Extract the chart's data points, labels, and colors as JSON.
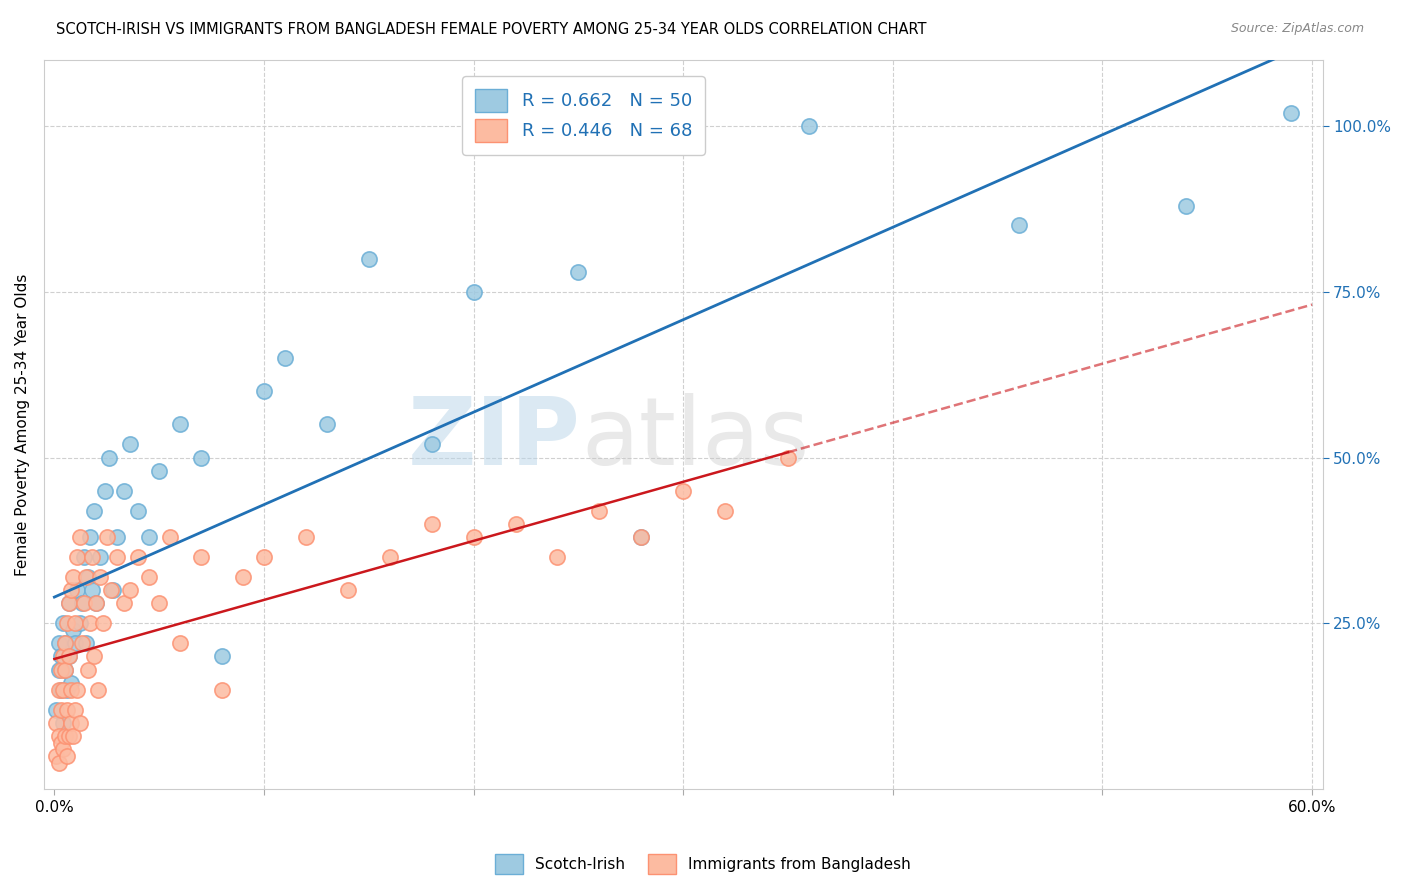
{
  "title": "SCOTCH-IRISH VS IMMIGRANTS FROM BANGLADESH FEMALE POVERTY AMONG 25-34 YEAR OLDS CORRELATION CHART",
  "source": "Source: ZipAtlas.com",
  "xlabel": "",
  "ylabel": "Female Poverty Among 25-34 Year Olds",
  "xlim": [
    0.0,
    0.6
  ],
  "ylim": [
    0.0,
    1.1
  ],
  "xticks": [
    0.0,
    0.1,
    0.2,
    0.3,
    0.4,
    0.5,
    0.6
  ],
  "xticklabels": [
    "0.0%",
    "",
    "",
    "",
    "",
    "",
    "60.0%"
  ],
  "yticks_right": [
    0.25,
    0.5,
    0.75,
    1.0
  ],
  "yticklabels_right": [
    "25.0%",
    "50.0%",
    "75.0%",
    "100.0%"
  ],
  "blue_color": "#9ecae1",
  "blue_edge_color": "#6baed6",
  "pink_color": "#fcbba1",
  "pink_edge_color": "#fc9272",
  "blue_line_color": "#2171b5",
  "pink_line_color": "#cb181d",
  "legend_R_blue": "R = 0.662",
  "legend_N_blue": "N = 50",
  "legend_R_pink": "R = 0.446",
  "legend_N_pink": "N = 68",
  "blue_scatter_x": [
    0.001,
    0.002,
    0.002,
    0.003,
    0.003,
    0.004,
    0.004,
    0.005,
    0.005,
    0.006,
    0.007,
    0.007,
    0.008,
    0.009,
    0.01,
    0.011,
    0.012,
    0.013,
    0.014,
    0.015,
    0.016,
    0.017,
    0.018,
    0.019,
    0.02,
    0.022,
    0.024,
    0.026,
    0.028,
    0.03,
    0.033,
    0.036,
    0.04,
    0.045,
    0.05,
    0.06,
    0.07,
    0.08,
    0.1,
    0.11,
    0.13,
    0.15,
    0.18,
    0.2,
    0.25,
    0.28,
    0.36,
    0.46,
    0.54,
    0.59
  ],
  "blue_scatter_y": [
    0.12,
    0.18,
    0.22,
    0.15,
    0.2,
    0.1,
    0.25,
    0.18,
    0.22,
    0.15,
    0.2,
    0.28,
    0.16,
    0.24,
    0.22,
    0.3,
    0.25,
    0.28,
    0.35,
    0.22,
    0.32,
    0.38,
    0.3,
    0.42,
    0.28,
    0.35,
    0.45,
    0.5,
    0.3,
    0.38,
    0.45,
    0.52,
    0.42,
    0.38,
    0.48,
    0.55,
    0.5,
    0.2,
    0.6,
    0.65,
    0.55,
    0.8,
    0.52,
    0.75,
    0.78,
    0.38,
    1.0,
    0.85,
    0.88,
    1.02
  ],
  "pink_scatter_x": [
    0.001,
    0.001,
    0.002,
    0.002,
    0.002,
    0.003,
    0.003,
    0.003,
    0.004,
    0.004,
    0.004,
    0.005,
    0.005,
    0.005,
    0.006,
    0.006,
    0.006,
    0.007,
    0.007,
    0.007,
    0.008,
    0.008,
    0.008,
    0.009,
    0.009,
    0.01,
    0.01,
    0.011,
    0.011,
    0.012,
    0.012,
    0.013,
    0.014,
    0.015,
    0.016,
    0.017,
    0.018,
    0.019,
    0.02,
    0.021,
    0.022,
    0.023,
    0.025,
    0.027,
    0.03,
    0.033,
    0.036,
    0.04,
    0.045,
    0.05,
    0.055,
    0.06,
    0.07,
    0.08,
    0.09,
    0.1,
    0.12,
    0.14,
    0.16,
    0.18,
    0.2,
    0.22,
    0.24,
    0.26,
    0.28,
    0.3,
    0.32,
    0.35
  ],
  "pink_scatter_y": [
    0.1,
    0.05,
    0.08,
    0.15,
    0.04,
    0.18,
    0.07,
    0.12,
    0.2,
    0.06,
    0.15,
    0.22,
    0.08,
    0.18,
    0.25,
    0.05,
    0.12,
    0.28,
    0.08,
    0.2,
    0.3,
    0.1,
    0.15,
    0.32,
    0.08,
    0.25,
    0.12,
    0.35,
    0.15,
    0.38,
    0.1,
    0.22,
    0.28,
    0.32,
    0.18,
    0.25,
    0.35,
    0.2,
    0.28,
    0.15,
    0.32,
    0.25,
    0.38,
    0.3,
    0.35,
    0.28,
    0.3,
    0.35,
    0.32,
    0.28,
    0.38,
    0.22,
    0.35,
    0.15,
    0.32,
    0.35,
    0.38,
    0.3,
    0.35,
    0.4,
    0.38,
    0.4,
    0.35,
    0.42,
    0.38,
    0.45,
    0.42,
    0.5
  ],
  "watermark_zip": "ZIP",
  "watermark_atlas": "atlas",
  "background_color": "#ffffff",
  "grid_color": "#d0d0d0"
}
